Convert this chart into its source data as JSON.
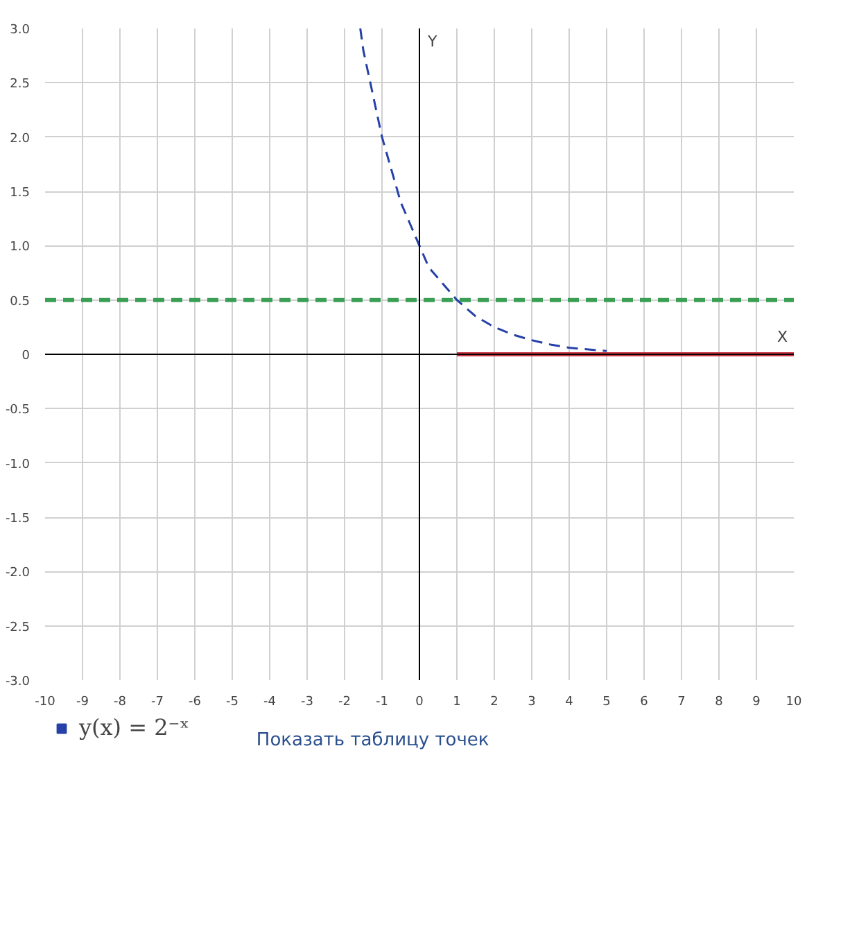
{
  "chart_data": {
    "type": "line",
    "xlabel": "X",
    "ylabel": "Y",
    "xlim": [
      -10,
      10
    ],
    "ylim": [
      -3,
      3
    ],
    "xticks": [
      -10,
      -9,
      -8,
      -7,
      -6,
      -5,
      -4,
      -3,
      -2,
      -1,
      0,
      1,
      2,
      3,
      4,
      5,
      6,
      7,
      8,
      9,
      10
    ],
    "yticks": [
      {
        "value": -3,
        "label": "-3.0"
      },
      {
        "value": -2.5,
        "label": "-2.5"
      },
      {
        "value": -2,
        "label": "-2.0"
      },
      {
        "value": -1.5,
        "label": "-1.5"
      },
      {
        "value": -1,
        "label": "-1.0"
      },
      {
        "value": -0.5,
        "label": "-0.5"
      },
      0,
      {
        "value": 0.5,
        "label": "0.5"
      },
      {
        "value": 1,
        "label": "1.0"
      },
      {
        "value": 1.5,
        "label": "1.5"
      },
      {
        "value": 2,
        "label": "2.0"
      },
      {
        "value": 2.5,
        "label": "2.5"
      },
      {
        "value": 3,
        "label": "3.0"
      }
    ],
    "grid": true,
    "legend": "bottom",
    "series": [
      {
        "name": "y(x) = 2⁻ˣ",
        "color": "#2541a8",
        "line_style": "dashed",
        "x": [
          -1.58,
          -1.5,
          -1.25,
          -1,
          -0.75,
          -0.5,
          -0.25,
          0,
          0.25,
          0.5,
          0.75,
          1,
          1.5,
          2,
          2.5,
          3,
          3.5,
          4,
          5
        ],
        "values": [
          3,
          2.8,
          2.4,
          2,
          1.7,
          1.4,
          1.2,
          1,
          0.8,
          0.7,
          0.6,
          0.5,
          0.35,
          0.25,
          0.18,
          0.13,
          0.09,
          0.06,
          0.03
        ]
      },
      {
        "color": "#cc3340",
        "line_style": "solid",
        "x": [
          1,
          10
        ],
        "values": [
          0,
          0
        ]
      }
    ],
    "ref_lines": [
      {
        "axis": "y",
        "value": 0.5,
        "color": "#3a9e55",
        "line_style": "dashed"
      }
    ],
    "annotations": [
      "Показать таблицу точек"
    ]
  }
}
